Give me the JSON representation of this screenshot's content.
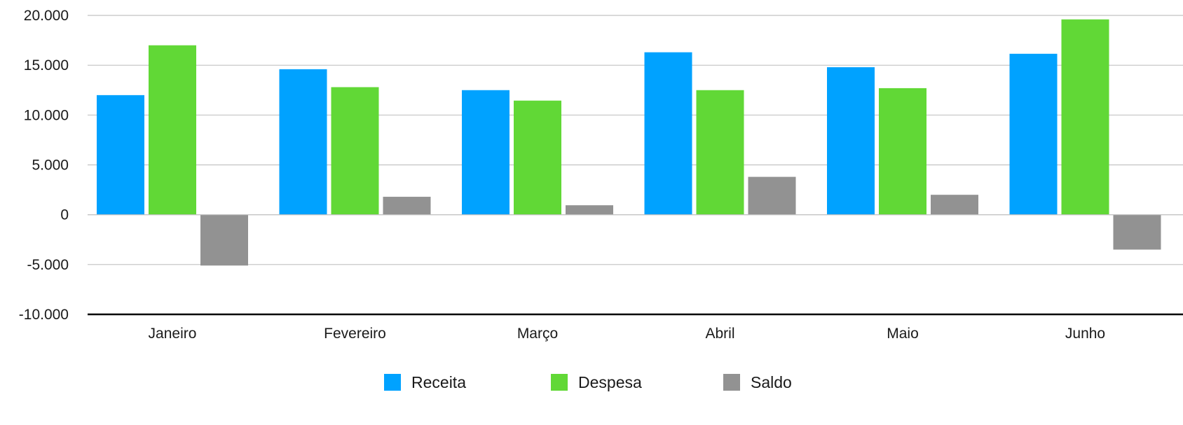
{
  "chart_data": {
    "type": "bar",
    "categories": [
      "Janeiro",
      "Fevereiro",
      "Março",
      "Abril",
      "Maio",
      "Junho"
    ],
    "series": [
      {
        "name": "Receita",
        "color": "#00a2ff",
        "values": [
          12000,
          14600,
          12500,
          16300,
          14800,
          16150
        ]
      },
      {
        "name": "Despesa",
        "color": "#61d836",
        "values": [
          17000,
          12800,
          11450,
          12500,
          12700,
          19600
        ]
      },
      {
        "name": "Saldo",
        "color": "#929292",
        "values": [
          -5100,
          1800,
          950,
          3800,
          2000,
          -3500
        ]
      }
    ],
    "y_ticks": [
      "20.000",
      "15.000",
      "10.000",
      "5.000",
      "0",
      "-5.000",
      "-10.000"
    ],
    "ylim": [
      -10000,
      20000
    ],
    "grid": true,
    "legend_position": "bottom-center",
    "title": "",
    "xlabel": "",
    "ylabel": ""
  }
}
